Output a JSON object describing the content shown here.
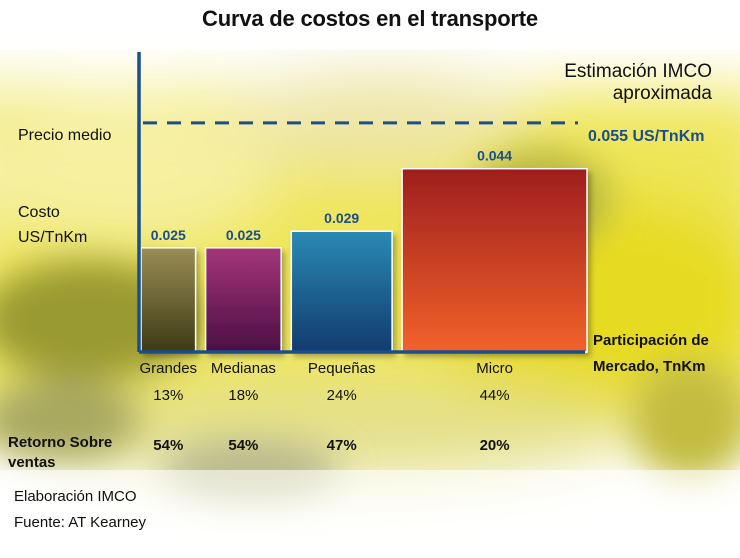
{
  "chart_data": {
    "type": "bar",
    "title": "Curva de costos en el transporte",
    "subtitle_lines": [
      "Estimación IMCO",
      "aproximada"
    ],
    "ylabel_lines": [
      "Costo",
      "US/TnKm"
    ],
    "xlabel_lines": [
      "Participación de",
      "Mercado, TnKm"
    ],
    "categories": [
      "Grandes",
      "Medianas",
      "Pequeñas",
      "Micro"
    ],
    "values": [
      0.025,
      0.025,
      0.029,
      0.044
    ],
    "value_labels": [
      "0.025",
      "0.025",
      "0.029",
      "0.044"
    ],
    "market_share": [
      13,
      18,
      24,
      44
    ],
    "market_share_labels": [
      "13%",
      "18%",
      "24%",
      "44%"
    ],
    "return_on_sales_labels": [
      "54%",
      "54%",
      "47%",
      "20%"
    ],
    "reference_line": {
      "label": "Precio medio",
      "value": 0.055,
      "value_label": "0.055 US/TnKm",
      "style": "dashed"
    },
    "ylim": [
      0,
      0.06
    ],
    "bar_colors": [
      [
        "#9a8d55",
        "#3d3a14"
      ],
      [
        "#a4357a",
        "#4a0f44"
      ],
      [
        "#2a8ab4",
        "#123a6e"
      ],
      [
        "#9e1e1e",
        "#f2622a"
      ]
    ]
  },
  "labels": {
    "return_row_lines": [
      "Retorno Sobre",
      "ventas"
    ],
    "elaboracion": "Elaboración IMCO",
    "fuente": "Fuente: AT Kearney"
  },
  "colors": {
    "axis": "#1a4e8c",
    "value_text": "#1a4e8c",
    "reference_line": "#1a4e8c",
    "background_accent": "#e8de2a"
  }
}
